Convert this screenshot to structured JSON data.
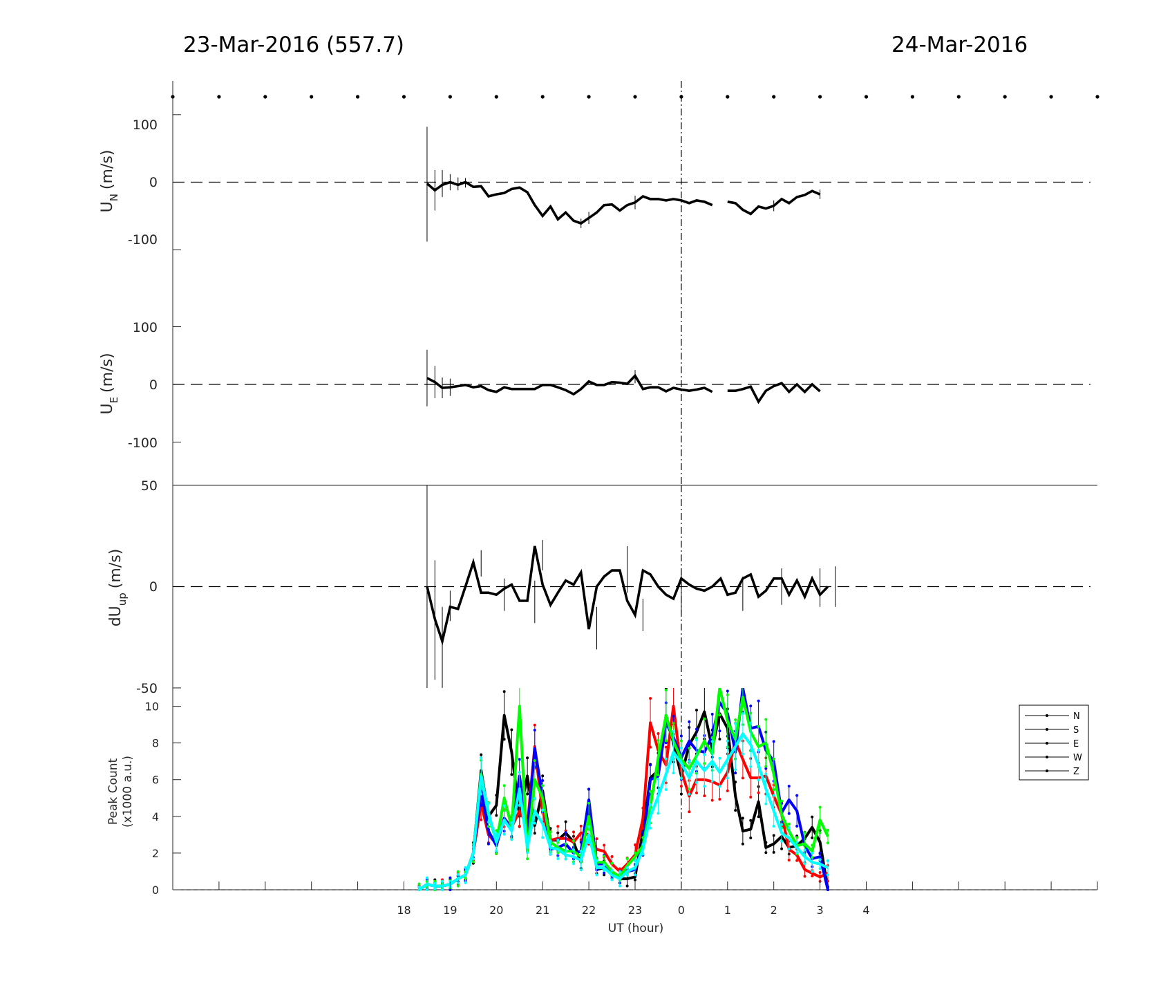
{
  "titles": {
    "left": "23-Mar-2016 (557.7)",
    "right": "24-Mar-2016"
  },
  "chart_data": [
    {
      "type": "line",
      "panel": "U_N",
      "ylabel": {
        "main": "U",
        "sub": "N",
        "unit": "(m/s)"
      },
      "ylim": [
        -150,
        150
      ],
      "yticks": [
        "100",
        "0",
        "-100"
      ],
      "xlim": [
        13,
        33
      ],
      "reference_line": {
        "y": 0,
        "style": "dashed"
      },
      "midnight_marker": 24,
      "series": [
        {
          "x": [
            18.5,
            18.67,
            18.83,
            19.0,
            19.17,
            19.33,
            19.5,
            19.67,
            19.83,
            20.0,
            20.17,
            20.33,
            20.5,
            20.67,
            20.83,
            21.0,
            21.17,
            21.33,
            21.5,
            21.67,
            21.83,
            22.0,
            22.17,
            22.33,
            22.5,
            22.67,
            22.83,
            23.0,
            23.17,
            23.33,
            23.5,
            23.67,
            23.83,
            24.0,
            24.17,
            24.33,
            24.5,
            24.67,
            24.85,
            25.0,
            25.17,
            25.33,
            25.5,
            25.67,
            25.83,
            26.0,
            26.17,
            26.33,
            26.5,
            26.67,
            26.83,
            27.0
          ],
          "y": [
            -2,
            -12,
            -4,
            0,
            -4,
            0,
            -7,
            -6,
            -21,
            -18,
            -16,
            -10,
            -8,
            -15,
            -34,
            -50,
            -36,
            -55,
            -45,
            -57,
            -61,
            -53,
            -45,
            -34,
            -33,
            -42,
            -34,
            -30,
            -21,
            -25,
            -25,
            -27,
            -25,
            -27,
            -31,
            -27,
            -29,
            -34,
            null,
            -29,
            -31,
            -41,
            -47,
            -36,
            -39,
            -35,
            -25,
            -31,
            -22,
            -19,
            -13,
            -18
          ]
        }
      ],
      "errorbars": [
        {
          "x": 18.5,
          "lo": -88,
          "hi": 82
        },
        {
          "x": 18.67,
          "lo": -42,
          "hi": 18
        },
        {
          "x": 18.83,
          "lo": -22,
          "hi": 18
        },
        {
          "x": 19.0,
          "lo": -12,
          "hi": 12
        },
        {
          "x": 19.17,
          "lo": -12,
          "hi": 7
        },
        {
          "x": 19.33,
          "lo": -8,
          "hi": 6
        },
        {
          "x": 21.83,
          "lo": -68,
          "hi": -54
        },
        {
          "x": 22.0,
          "lo": -62,
          "hi": -44
        },
        {
          "x": 23.0,
          "lo": -40,
          "hi": -20
        },
        {
          "x": 26.0,
          "lo": -43,
          "hi": -27
        },
        {
          "x": 27.0,
          "lo": -25,
          "hi": -11
        }
      ]
    },
    {
      "type": "line",
      "panel": "U_E",
      "ylabel": {
        "main": "U",
        "sub": "E",
        "unit": "(m/s)"
      },
      "ylim": [
        -175,
        175
      ],
      "yticks": [
        "100",
        "0",
        "-100"
      ],
      "xlim": [
        13,
        33
      ],
      "reference_line": {
        "y": 0,
        "style": "dashed"
      },
      "midnight_marker": 24,
      "series": [
        {
          "x": [
            18.5,
            18.67,
            18.83,
            19.0,
            19.17,
            19.33,
            19.5,
            19.67,
            19.83,
            20.0,
            20.17,
            20.33,
            20.5,
            20.67,
            20.83,
            21.0,
            21.17,
            21.33,
            21.5,
            21.67,
            21.83,
            22.0,
            22.17,
            22.33,
            22.5,
            22.67,
            22.83,
            23.0,
            23.17,
            23.33,
            23.5,
            23.67,
            23.83,
            24.0,
            24.17,
            24.33,
            24.5,
            24.67,
            24.85,
            25.0,
            25.17,
            25.33,
            25.5,
            25.67,
            25.83,
            26.0,
            26.17,
            26.33,
            26.5,
            26.67,
            26.83,
            27.0
          ],
          "y": [
            11,
            4,
            -6,
            -5,
            -3,
            -1,
            -5,
            -3,
            -10,
            -13,
            -5,
            -8,
            -8,
            -8,
            -8,
            -1,
            -1,
            -5,
            -10,
            -17,
            -8,
            5,
            -1,
            -1,
            4,
            3,
            1,
            15,
            -8,
            -5,
            -5,
            -12,
            -6,
            -9,
            -11,
            -9,
            -6,
            -13,
            null,
            -11,
            -11,
            -8,
            -4,
            -30,
            -11,
            -3,
            2,
            -13,
            0,
            -13,
            0,
            -12
          ]
        }
      ],
      "errorbars": [
        {
          "x": 18.5,
          "lo": -38,
          "hi": 60
        },
        {
          "x": 18.67,
          "lo": -24,
          "hi": 32
        },
        {
          "x": 18.83,
          "lo": -24,
          "hi": 12
        },
        {
          "x": 19.0,
          "lo": -20,
          "hi": 10
        },
        {
          "x": 23.0,
          "lo": 2,
          "hi": 25
        }
      ]
    },
    {
      "type": "line",
      "panel": "dU_up",
      "ylabel": {
        "main": "dU",
        "sub": "up",
        "unit": "(m/s)"
      },
      "ylim": [
        -50,
        50
      ],
      "yticks": [
        "50",
        "0",
        "-50"
      ],
      "xlim": [
        13,
        33
      ],
      "reference_line": {
        "y": 0,
        "style": "dashed"
      },
      "midnight_marker": 24,
      "series": [
        {
          "x": [
            18.5,
            18.67,
            18.83,
            19.0,
            19.17,
            19.33,
            19.5,
            19.67,
            19.83,
            20.0,
            20.17,
            20.33,
            20.5,
            20.67,
            20.83,
            21.0,
            21.17,
            21.33,
            21.5,
            21.67,
            21.83,
            22.0,
            22.17,
            22.33,
            22.5,
            22.67,
            22.83,
            23.0,
            23.17,
            23.33,
            23.5,
            23.67,
            23.83,
            24.0,
            24.17,
            24.33,
            24.5,
            24.67,
            24.85,
            25.0,
            25.17,
            25.33,
            25.5,
            25.67,
            25.83,
            26.0,
            26.17,
            26.33,
            26.5,
            26.67,
            26.83,
            27.0,
            27.17,
            27.33
          ],
          "y": [
            0,
            -16,
            -27,
            -10,
            -11,
            0,
            12,
            -3,
            -3,
            -4,
            -1,
            1,
            -7,
            -7,
            20,
            1,
            -9,
            -3,
            3,
            1,
            7,
            -21,
            0,
            5,
            8,
            8,
            -7,
            -14,
            8,
            6,
            0,
            -4,
            -6,
            4,
            1,
            -1,
            -2,
            0,
            4,
            -4,
            -3,
            4,
            6,
            -5,
            -2,
            4,
            4,
            -4,
            3,
            -5,
            4,
            -4,
            0,
            null
          ]
        }
      ],
      "errorbars": [
        {
          "x": 18.5,
          "lo": -50,
          "hi": 50
        },
        {
          "x": 18.67,
          "lo": -46,
          "hi": 13
        },
        {
          "x": 18.83,
          "lo": -50,
          "hi": -10
        },
        {
          "x": 19.0,
          "lo": -17,
          "hi": -2
        },
        {
          "x": 19.67,
          "lo": 5,
          "hi": 18
        },
        {
          "x": 20.17,
          "lo": -12,
          "hi": 4
        },
        {
          "x": 20.83,
          "lo": -18,
          "hi": 3
        },
        {
          "x": 21.0,
          "lo": 8,
          "hi": 23
        },
        {
          "x": 22.17,
          "lo": -31,
          "hi": -10
        },
        {
          "x": 22.83,
          "lo": -3,
          "hi": 20
        },
        {
          "x": 23.17,
          "lo": -22,
          "hi": -6
        },
        {
          "x": 24.0,
          "lo": -13,
          "hi": 9
        },
        {
          "x": 25.33,
          "lo": -12,
          "hi": 5
        },
        {
          "x": 26.17,
          "lo": -9,
          "hi": 9
        },
        {
          "x": 27.0,
          "lo": -10,
          "hi": 9
        },
        {
          "x": 27.33,
          "lo": -10,
          "hi": 10
        }
      ]
    },
    {
      "type": "line",
      "panel": "peak_count",
      "ylabel": {
        "line1": "Peak Count",
        "line2": "(x1000 a.u.)"
      },
      "ylim": [
        0,
        11
      ],
      "yticks": [
        "0",
        "2",
        "4",
        "6",
        "8",
        "10"
      ],
      "xlabel": "UT (hour)",
      "xlim": [
        13,
        33
      ],
      "xticks": [
        "18",
        "19",
        "20",
        "21",
        "22",
        "23",
        "0",
        "1",
        "2",
        "3",
        "4"
      ],
      "midnight_marker": 24,
      "legend": {
        "position": "top-right",
        "entries": [
          "N",
          "S",
          "E",
          "W",
          "Z"
        ]
      },
      "x": [
        18.33,
        18.5,
        18.67,
        18.83,
        19.0,
        19.17,
        19.33,
        19.5,
        19.67,
        19.83,
        20.0,
        20.17,
        20.33,
        20.5,
        20.67,
        20.83,
        21.0,
        21.17,
        21.33,
        21.5,
        21.67,
        21.83,
        22.0,
        22.17,
        22.33,
        22.5,
        22.67,
        22.83,
        23.0,
        23.17,
        23.33,
        23.5,
        23.67,
        23.83,
        24.0,
        24.17,
        24.33,
        24.5,
        24.67,
        24.83,
        25.0,
        25.17,
        25.33,
        25.5,
        25.67,
        25.83,
        26.0,
        26.17,
        26.33,
        26.5,
        26.67,
        26.83,
        27.0,
        27.17
      ],
      "series": [
        {
          "name": "N",
          "color": "#000000",
          "values": [
            0,
            0.3,
            0.2,
            0.2,
            0.3,
            0.6,
            0.8,
            2,
            6.5,
            4,
            4.6,
            9.5,
            7.5,
            4,
            6.2,
            3.5,
            5.4,
            2.7,
            2.7,
            3.1,
            2.6,
            1.5,
            4.6,
            1.1,
            1.2,
            0.9,
            0.6,
            0.6,
            0.7,
            3.2,
            6.1,
            6.5,
            9.5,
            8.0,
            6.2,
            7.9,
            8.6,
            9.7,
            7.7,
            9.6,
            8.8,
            5.1,
            3.2,
            3.3,
            4.8,
            2.3,
            2.5,
            2.9,
            2.3,
            2.4,
            2.8,
            3.4,
            2.6,
            0
          ]
        },
        {
          "name": "S",
          "color": "#ff0000",
          "values": [
            0,
            0.3,
            0.2,
            0.2,
            0.3,
            0.6,
            0.8,
            2,
            4.7,
            3.0,
            2.5,
            3.9,
            3.4,
            4.3,
            3.5,
            7.8,
            4.2,
            2.7,
            2.8,
            2.8,
            2.6,
            3.1,
            3.0,
            2.2,
            2.1,
            1.4,
            1.0,
            1.4,
            1.9,
            3.9,
            9.1,
            7.6,
            6.8,
            10,
            6.5,
            5.1,
            6.0,
            6.0,
            5.9,
            5.7,
            6.4,
            8.1,
            7.1,
            6.1,
            6.1,
            6.2,
            5.1,
            4.1,
            2.2,
            1.9,
            1.1,
            0.9,
            0.7,
            0.9
          ]
        },
        {
          "name": "E",
          "color": "#0000ff",
          "values": [
            0,
            0.3,
            0.2,
            0.2,
            0.3,
            0.6,
            0.8,
            2,
            5.4,
            3.2,
            2.4,
            3.9,
            3.3,
            6.2,
            3.1,
            7.7,
            5.1,
            2.2,
            2.3,
            2.5,
            2.0,
            2.1,
            4.9,
            1.4,
            1.4,
            0.8,
            0.7,
            1.0,
            1.1,
            2.5,
            6.0,
            6.2,
            9.1,
            8.3,
            7.2,
            8.1,
            7.6,
            7.5,
            8.4,
            10.2,
            9.6,
            7.5,
            11,
            8.8,
            8.9,
            7.6,
            7.0,
            4.2,
            4.9,
            4.3,
            2.4,
            1.7,
            1.8,
            0
          ]
        },
        {
          "name": "W",
          "color": "#00ff00",
          "values": [
            0,
            0.3,
            0.2,
            0.2,
            0.3,
            0.6,
            0.8,
            2,
            6.3,
            4.1,
            2.6,
            5.0,
            3.4,
            10.0,
            2.1,
            6.0,
            5.0,
            2.6,
            2.3,
            2.1,
            2.1,
            1.8,
            4.0,
            1.5,
            1.5,
            1.0,
            0.7,
            1.3,
            1.8,
            2.4,
            4.5,
            7.2,
            9.5,
            8.1,
            7.1,
            6.6,
            7.3,
            8.1,
            7.4,
            11,
            9.2,
            8.2,
            10.5,
            8.6,
            7.8,
            8.0,
            6.3,
            4.1,
            3.2,
            2.4,
            2.5,
            2.1,
            3.8,
            2.9
          ]
        },
        {
          "name": "Z",
          "color": "#00ffff",
          "values": [
            0,
            0.3,
            0.2,
            0.2,
            0.3,
            0.6,
            0.8,
            2,
            6.2,
            4.2,
            2.6,
            3.8,
            3.2,
            5.5,
            2.3,
            4.3,
            3.6,
            2.3,
            2.2,
            1.9,
            1.8,
            1.6,
            3.0,
            1.2,
            1.2,
            0.8,
            0.6,
            1.0,
            1.2,
            2.2,
            4.0,
            5.1,
            6.3,
            7.5,
            6.9,
            6.1,
            7.0,
            6.5,
            7.0,
            6.4,
            7.1,
            7.8,
            8.5,
            7.9,
            6.8,
            5.5,
            4.3,
            3.1,
            2.8,
            2.3,
            1.8,
            1.5,
            1.4,
            1.2
          ]
        }
      ]
    }
  ],
  "time_dots": [
    13,
    14,
    15,
    16,
    17,
    18,
    19,
    20,
    21,
    22,
    23,
    24,
    25,
    26,
    27,
    28,
    29,
    30,
    31,
    32,
    33
  ]
}
